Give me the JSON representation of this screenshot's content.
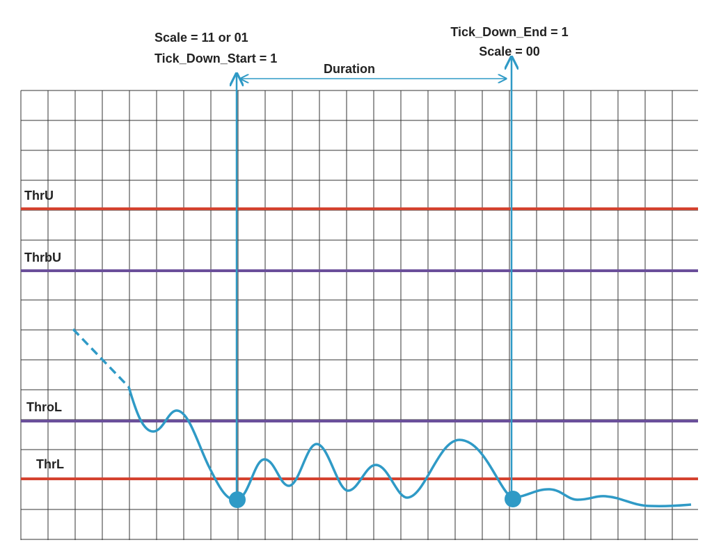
{
  "annotations": {
    "start": [
      "Scale = 11 or 01",
      "Tick_Down_Start = 1"
    ],
    "duration": "Duration",
    "end": [
      "Tick_Down_End = 1",
      "Scale = 00"
    ]
  },
  "thresholds": [
    "ThrU",
    "ThrbU",
    "ThroL",
    "ThrL"
  ]
}
